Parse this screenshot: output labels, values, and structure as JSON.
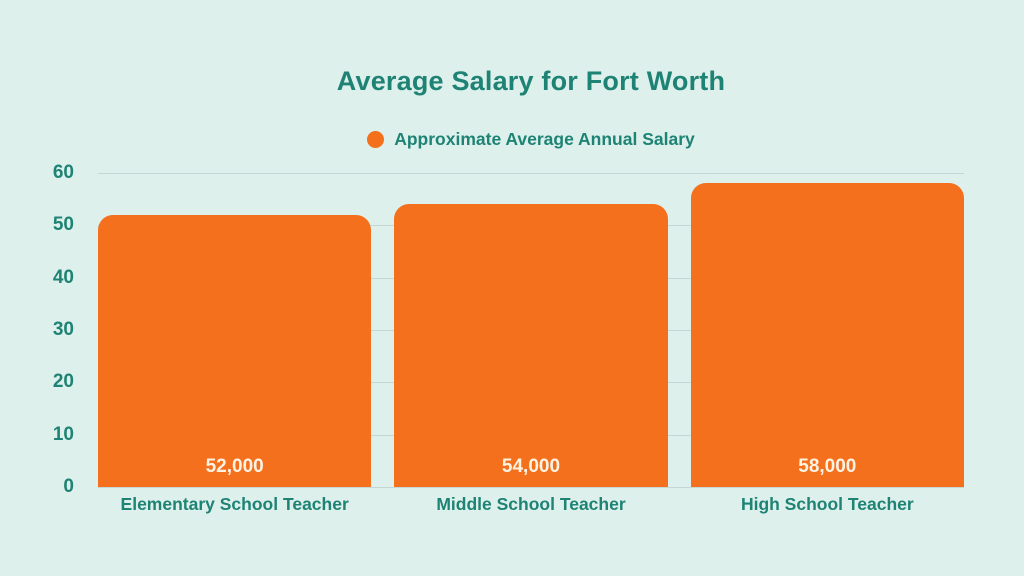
{
  "chart_data": {
    "type": "bar",
    "title": "Average Salary for Fort Worth",
    "legend": {
      "label": "Approximate Average Annual Salary",
      "position": "top",
      "marker": "circle"
    },
    "categories": [
      "Elementary School Teacher",
      "Middle School Teacher",
      "High School Teacher"
    ],
    "series": [
      {
        "name": "Approximate Average Annual Salary",
        "values": [
          52,
          54,
          58
        ],
        "value_labels": [
          "52,000",
          "54,000",
          "58,000"
        ]
      }
    ],
    "xlabel": "",
    "ylabel": "",
    "ylim": [
      0,
      60
    ],
    "yticks": [
      0,
      10,
      20,
      30,
      40,
      50,
      60
    ],
    "units": "thousands of dollars",
    "grid": true,
    "colors": {
      "background": "#ddf0ec",
      "bar": "#f4701d",
      "text": "#1e8374",
      "value_label": "#fcf3e3",
      "gridline": "#c3d8d4"
    }
  }
}
